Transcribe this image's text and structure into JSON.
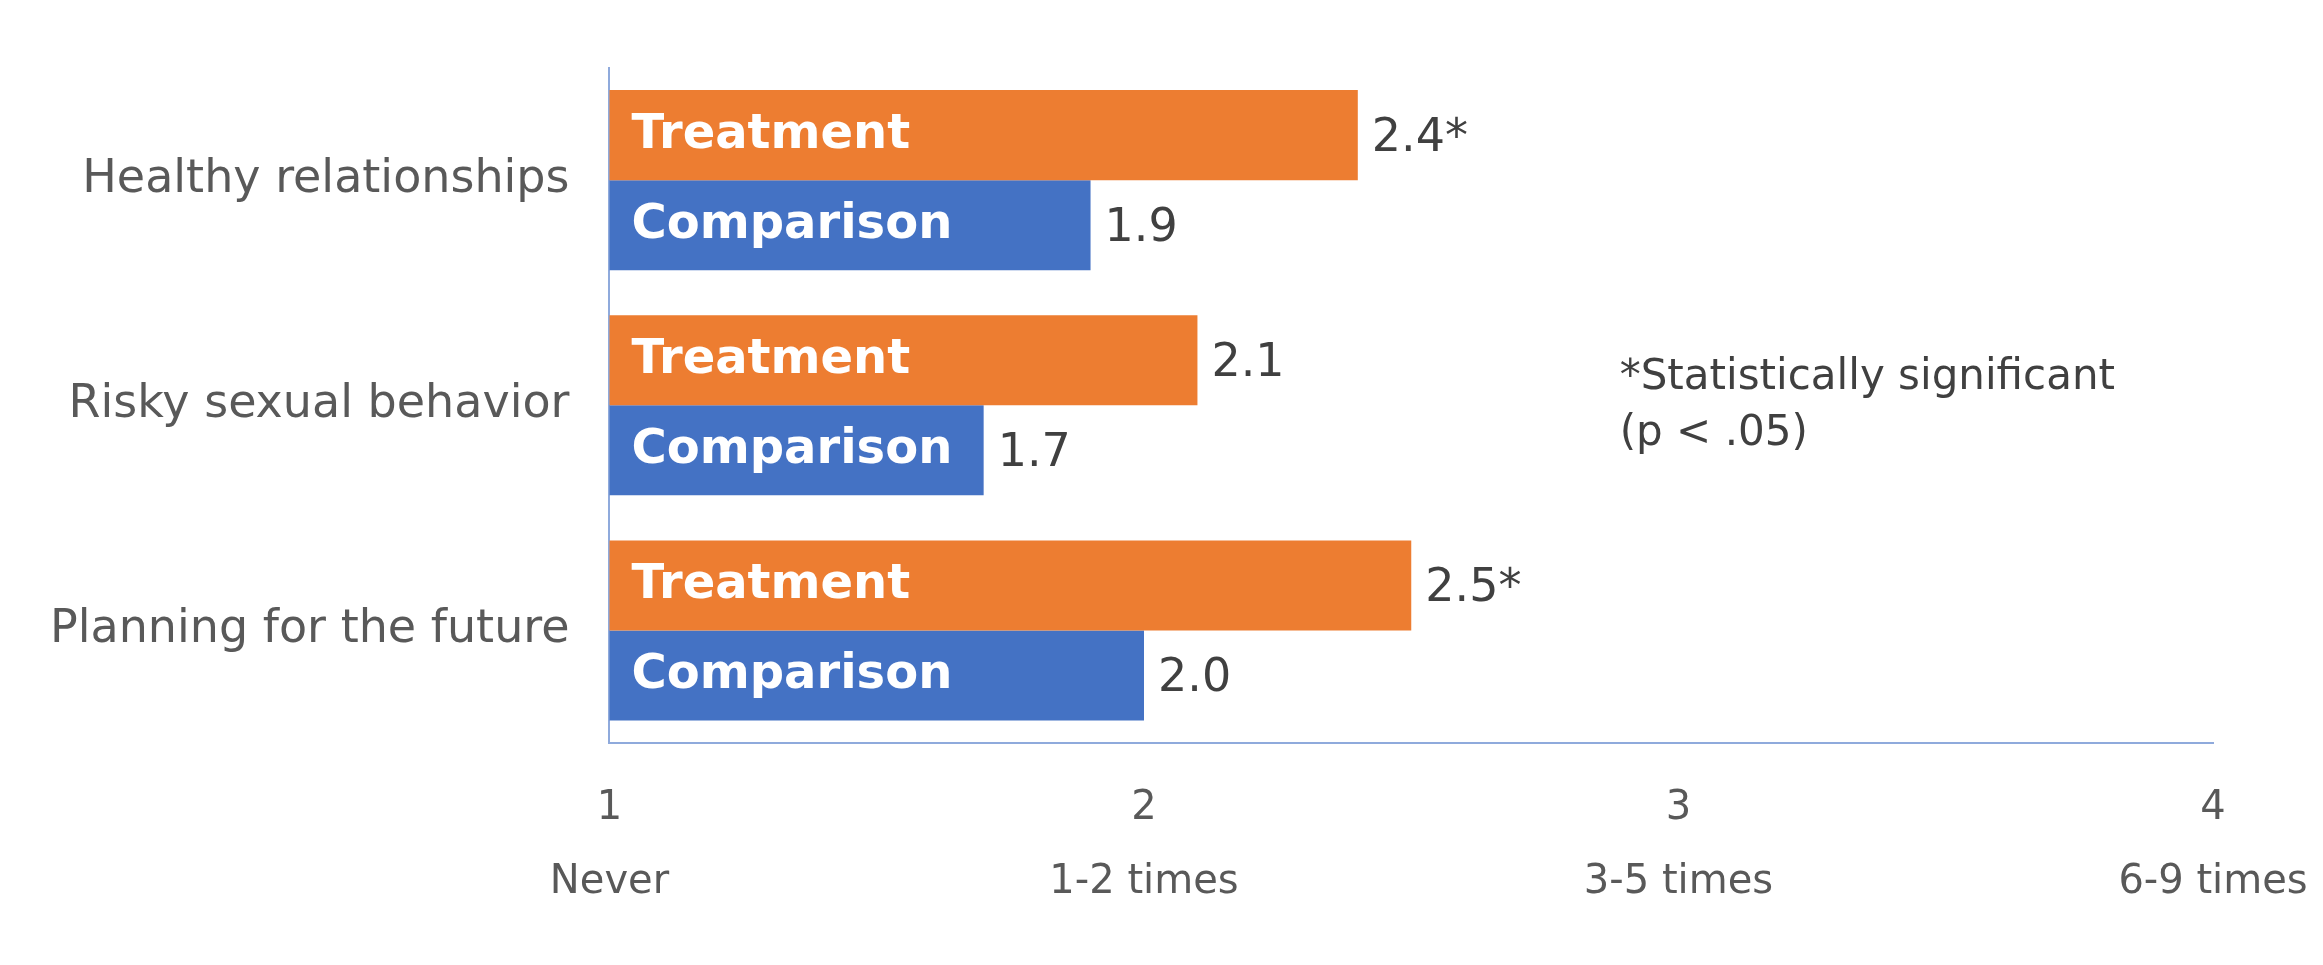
{
  "chart_data": {
    "type": "bar",
    "orientation": "horizontal",
    "categories": [
      "Healthy relationships",
      "Risky sexual behavior",
      "Planning for the future"
    ],
    "series": [
      {
        "name": "Treatment",
        "color": "#ed7d31",
        "values": [
          2.4,
          2.1,
          2.5
        ],
        "value_labels": [
          "2.4*",
          "2.1",
          "2.5*"
        ]
      },
      {
        "name": "Comparison",
        "color": "#4472c4",
        "values": [
          1.9,
          1.7,
          2.0
        ],
        "value_labels": [
          "1.9",
          "1.7",
          "2.0"
        ]
      }
    ],
    "xlim": [
      1,
      4
    ],
    "xticks": [
      1,
      2,
      3,
      4
    ],
    "annotations": [
      "*Statistically significant\n(p < .05)",
      "Never",
      "1-2 times",
      "3-5 times",
      "6-9 times"
    ],
    "grid": false,
    "legend": false
  }
}
